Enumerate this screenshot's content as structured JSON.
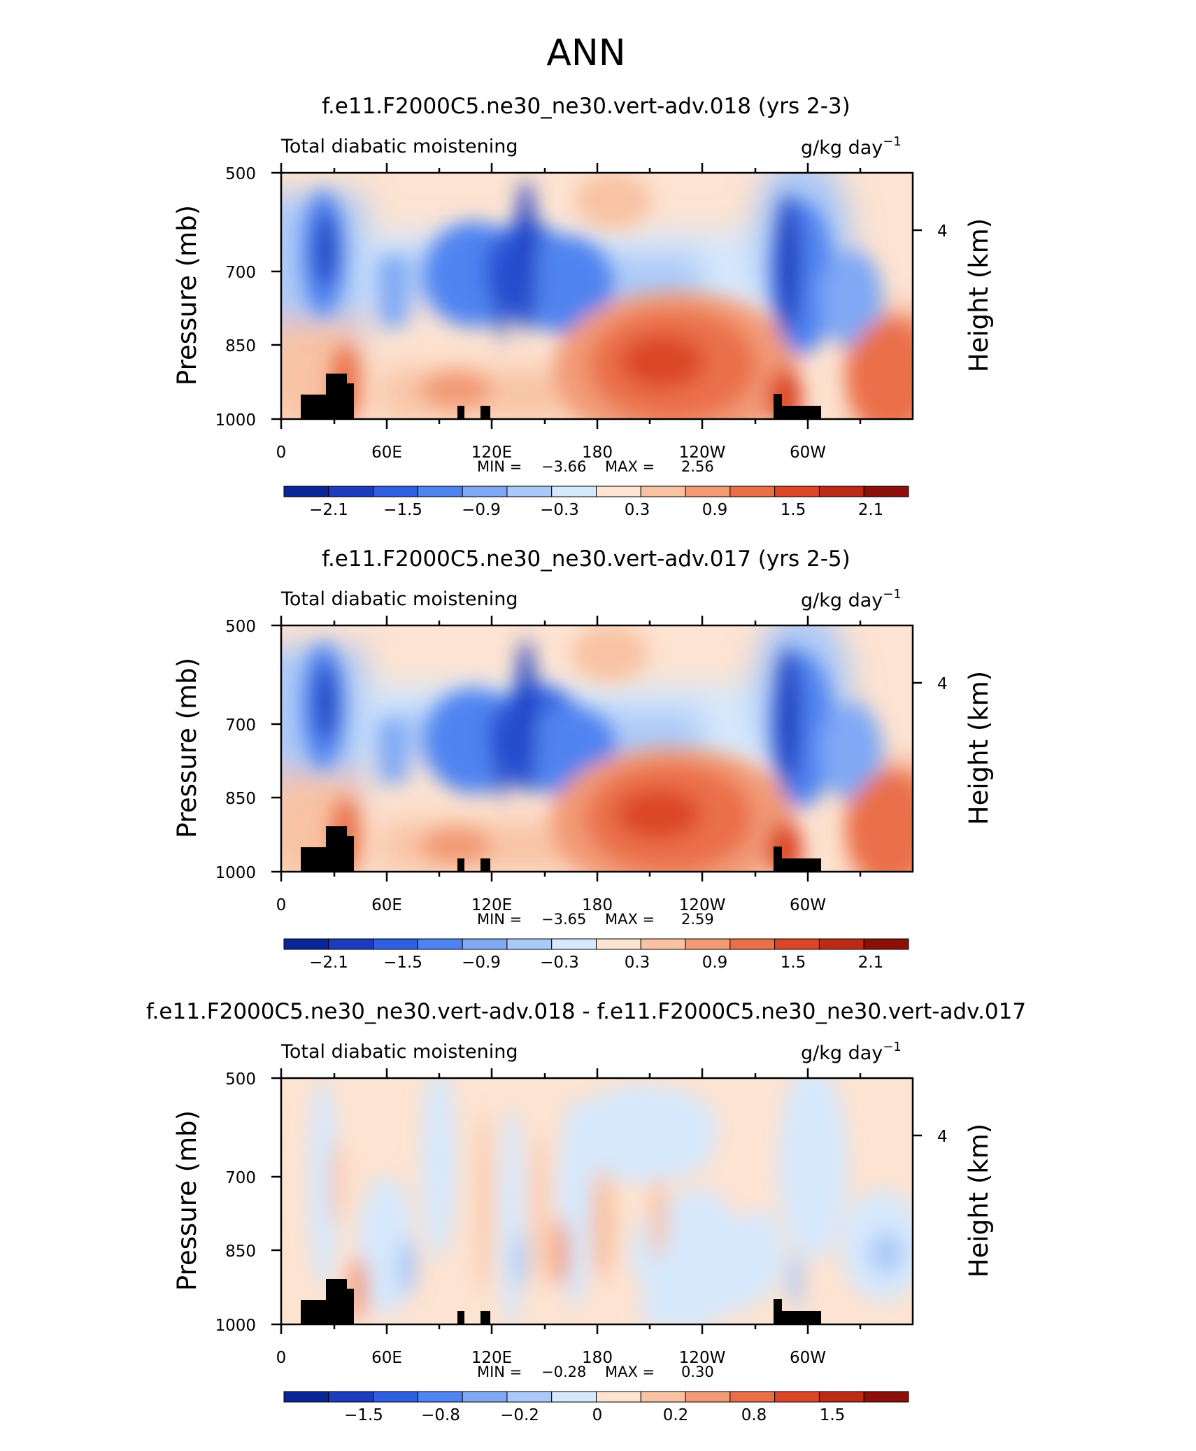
{
  "figure": {
    "title": "ANN",
    "colors": {
      "full": [
        "#0a2598",
        "#1c3cbf",
        "#2f5fe0",
        "#4f83f0",
        "#7fa9f5",
        "#abc9f8",
        "#d6e8fc",
        "#fde3d1",
        "#f8c2a3",
        "#f29a76",
        "#ea6f49",
        "#dc4627",
        "#bd2a17",
        "#8c1008"
      ],
      "diff": [
        "#0a2598",
        "#1c3cbf",
        "#2f5fe0",
        "#4f83f0",
        "#7fa9f5",
        "#abc9f8",
        "#d6e8fc",
        "#fde3d1",
        "#f8c2a3",
        "#f29a76",
        "#ea6f49",
        "#dc4627",
        "#bd2a17",
        "#8c1008"
      ]
    }
  },
  "panels": [
    {
      "title": "f.e11.F2000C5.ne30_ne30.vert-adv.018 (yrs 2-3)",
      "left_label": "Total diabatic moistening",
      "units": "g/kg day",
      "units_sup": "−1",
      "ylabel": "Pressure (mb)",
      "right_label": "Height (km)",
      "right_tick": "4",
      "yticks": [
        "500",
        "700",
        "850",
        "1000"
      ],
      "xticks": [
        "0",
        "60E",
        "120E",
        "180",
        "120W",
        "60W"
      ],
      "min_label": "MIN =",
      "min_value": "−3.66",
      "max_label": "MAX =",
      "max_value": "2.56",
      "colorbar_labels": [
        "−2.1",
        "−1.5",
        "−0.9",
        "−0.3",
        "0.3",
        "0.9",
        "1.5",
        "2.1"
      ]
    },
    {
      "title": "f.e11.F2000C5.ne30_ne30.vert-adv.017 (yrs 2-5)",
      "left_label": "Total diabatic moistening",
      "units": "g/kg day",
      "units_sup": "−1",
      "ylabel": "Pressure (mb)",
      "right_label": "Height (km)",
      "right_tick": "4",
      "yticks": [
        "500",
        "700",
        "850",
        "1000"
      ],
      "xticks": [
        "0",
        "60E",
        "120E",
        "180",
        "120W",
        "60W"
      ],
      "min_label": "MIN =",
      "min_value": "−3.65",
      "max_label": "MAX =",
      "max_value": "2.59",
      "colorbar_labels": [
        "−2.1",
        "−1.5",
        "−0.9",
        "−0.3",
        "0.3",
        "0.9",
        "1.5",
        "2.1"
      ]
    },
    {
      "title": "f.e11.F2000C5.ne30_ne30.vert-adv.018 - f.e11.F2000C5.ne30_ne30.vert-adv.017",
      "left_label": "Total diabatic moistening",
      "units": "g/kg day",
      "units_sup": "−1",
      "ylabel": "Pressure (mb)",
      "right_label": "Height (km)",
      "right_tick": "4",
      "yticks": [
        "500",
        "700",
        "850",
        "1000"
      ],
      "xticks": [
        "0",
        "60E",
        "120E",
        "180",
        "120W",
        "60W"
      ],
      "min_label": "MIN =",
      "min_value": "−0.28",
      "max_label": "MAX =",
      "max_value": "0.30",
      "colorbar_labels": [
        "−1.5",
        "−0.8",
        "−0.2",
        "0",
        "0.2",
        "0.8",
        "1.5"
      ]
    }
  ],
  "chart_data": [
    {
      "type": "heatmap",
      "title": "f.e11.F2000C5.ne30_ne30.vert-adv.018 (yrs 2-3)",
      "ylabel": "Pressure (mb)",
      "y_ticks": [
        500,
        700,
        850,
        1000
      ],
      "x_ticks": [
        "0",
        "60E",
        "120E",
        "180",
        "120W",
        "60W"
      ],
      "min": -3.66,
      "max": 2.56,
      "contour_levels": [
        -2.1,
        -1.5,
        -0.9,
        -0.3,
        0.3,
        0.9,
        1.5,
        2.1
      ],
      "features": [
        {
          "lon": 18,
          "p": 640,
          "value": -2.4
        },
        {
          "lon": 38,
          "p": 930,
          "value": 1.8
        },
        {
          "lon": 67,
          "p": 740,
          "value": -0.9
        },
        {
          "lon": 107,
          "p": 740,
          "value": -1.5
        },
        {
          "lon": 135,
          "p": 700,
          "value": -1.8
        },
        {
          "lon": 158,
          "p": 760,
          "value": -1.2
        },
        {
          "lon": 220,
          "p": 890,
          "value": 2.3
        },
        {
          "lon": 282,
          "p": 740,
          "value": -2.6
        },
        {
          "lon": 300,
          "p": 740,
          "value": -1.2
        },
        {
          "lon": 355,
          "p": 920,
          "value": 1.4
        }
      ]
    },
    {
      "type": "heatmap",
      "title": "f.e11.F2000C5.ne30_ne30.vert-adv.017 (yrs 2-5)",
      "ylabel": "Pressure (mb)",
      "y_ticks": [
        500,
        700,
        850,
        1000
      ],
      "x_ticks": [
        "0",
        "60E",
        "120E",
        "180",
        "120W",
        "60W"
      ],
      "min": -3.65,
      "max": 2.59,
      "contour_levels": [
        -2.1,
        -1.5,
        -0.9,
        -0.3,
        0.3,
        0.9,
        1.5,
        2.1
      ],
      "features": [
        {
          "lon": 18,
          "p": 640,
          "value": -2.4
        },
        {
          "lon": 38,
          "p": 930,
          "value": 1.8
        },
        {
          "lon": 67,
          "p": 760,
          "value": -0.8
        },
        {
          "lon": 107,
          "p": 760,
          "value": -1.4
        },
        {
          "lon": 135,
          "p": 740,
          "value": -1.9
        },
        {
          "lon": 158,
          "p": 780,
          "value": -1.3
        },
        {
          "lon": 218,
          "p": 890,
          "value": 2.3
        },
        {
          "lon": 282,
          "p": 740,
          "value": -2.6
        },
        {
          "lon": 300,
          "p": 740,
          "value": -1.2
        },
        {
          "lon": 355,
          "p": 920,
          "value": 1.3
        }
      ]
    },
    {
      "type": "heatmap",
      "title": "f.e11.F2000C5.ne30_ne30.vert-adv.018 - f.e11.F2000C5.ne30_ne30.vert-adv.017",
      "ylabel": "Pressure (mb)",
      "y_ticks": [
        500,
        700,
        850,
        1000
      ],
      "x_ticks": [
        "0",
        "60E",
        "120E",
        "180",
        "120W",
        "60W"
      ],
      "min": -0.28,
      "max": 0.3,
      "contour_levels": [
        -1.5,
        -0.8,
        -0.2,
        0,
        0.2,
        0.8,
        1.5
      ],
      "features": [
        {
          "lon": 28,
          "p": 760,
          "value": 0.25
        },
        {
          "lon": 62,
          "p": 890,
          "value": -0.22
        },
        {
          "lon": 110,
          "p": 800,
          "value": 0.2
        },
        {
          "lon": 128,
          "p": 900,
          "value": -0.2
        },
        {
          "lon": 150,
          "p": 780,
          "value": 0.22
        },
        {
          "lon": 165,
          "p": 900,
          "value": 0.2
        },
        {
          "lon": 198,
          "p": 860,
          "value": 0.18
        },
        {
          "lon": 240,
          "p": 650,
          "value": 0.15
        },
        {
          "lon": 282,
          "p": 850,
          "value": -0.2
        },
        {
          "lon": 335,
          "p": 880,
          "value": -0.15
        }
      ]
    }
  ]
}
